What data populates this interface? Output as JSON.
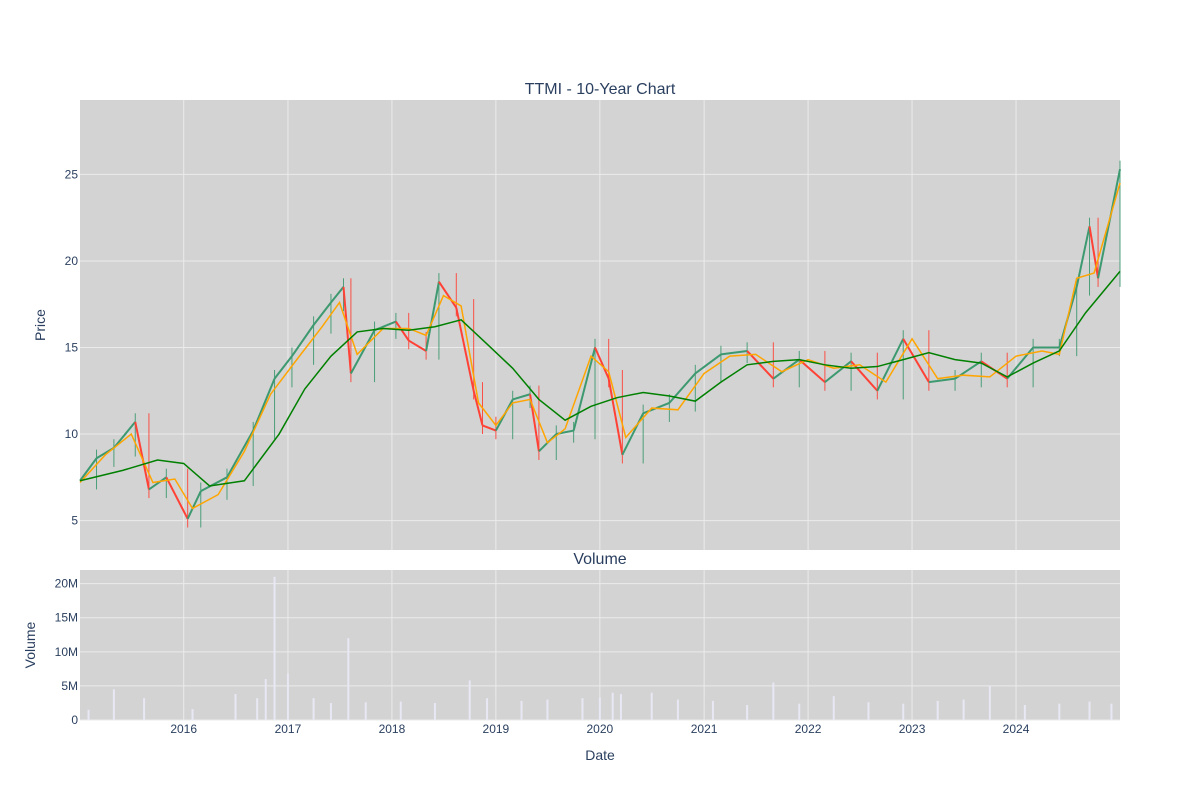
{
  "chart_data": [
    {
      "type": "line",
      "title": "TTMI - 10-Year Chart",
      "ylabel": "Price",
      "xlabel": "",
      "xlim": [
        "2015-01-02",
        "2024-12-31"
      ],
      "ylim": [
        3.3,
        29.3
      ],
      "x_tick_labels": [
        "2016",
        "2017",
        "2018",
        "2019",
        "2020",
        "2021",
        "2022",
        "2023",
        "2024"
      ],
      "x_tick_values": [
        "2016-01-01",
        "2017-01-01",
        "2018-01-01",
        "2019-01-01",
        "2020-01-01",
        "2021-01-01",
        "2022-01-01",
        "2023-01-01",
        "2024-01-01"
      ],
      "y_tick_labels": [
        "5",
        "10",
        "15",
        "20",
        "25"
      ],
      "y_tick_values": [
        5,
        10,
        15,
        20,
        25
      ],
      "grid": true,
      "legend": "none",
      "colors": {
        "background": "#d3d3d3",
        "grid": "#ebebeb",
        "increase": "#3d9970",
        "decrease": "#ff4136",
        "ma_short": "#ffa500",
        "ma_long": "#008000",
        "text": "#2a3f5f"
      },
      "series": [
        {
          "type": "candlestick-close",
          "x": [
            "2015-01-02",
            "2015-03-01",
            "2015-05-01",
            "2015-07-15",
            "2015-09-01",
            "2015-11-01",
            "2016-01-15",
            "2016-03-01",
            "2016-06-01",
            "2016-09-01",
            "2016-11-15",
            "2017-01-15",
            "2017-04-01",
            "2017-06-01",
            "2017-07-15",
            "2017-08-10",
            "2017-11-01",
            "2018-01-15",
            "2018-03-01",
            "2018-05-01",
            "2018-06-15",
            "2018-08-15",
            "2018-10-15",
            "2018-11-15",
            "2019-01-01",
            "2019-03-01",
            "2019-05-01",
            "2019-06-01",
            "2019-08-01",
            "2019-10-01",
            "2019-12-15",
            "2020-02-01",
            "2020-03-20",
            "2020-06-01",
            "2020-09-01",
            "2020-12-01",
            "2021-03-01",
            "2021-06-01",
            "2021-09-01",
            "2021-12-01",
            "2022-03-01",
            "2022-06-01",
            "2022-09-01",
            "2022-12-01",
            "2023-03-01",
            "2023-06-01",
            "2023-09-01",
            "2023-12-01",
            "2024-03-01",
            "2024-06-01",
            "2024-08-01",
            "2024-09-15",
            "2024-10-15",
            "2024-12-31"
          ],
          "values": [
            7.3,
            8.6,
            9.2,
            10.7,
            6.8,
            7.5,
            5.1,
            6.7,
            7.5,
            10.2,
            13.2,
            14.5,
            16.3,
            17.6,
            18.5,
            13.5,
            16.0,
            16.5,
            15.4,
            14.8,
            18.8,
            17.3,
            12.5,
            10.5,
            10.2,
            12.0,
            12.3,
            9.0,
            10.0,
            10.2,
            15.0,
            13.2,
            8.8,
            11.2,
            11.8,
            13.5,
            14.6,
            14.8,
            13.2,
            14.3,
            13.0,
            14.2,
            12.5,
            15.5,
            13.0,
            13.2,
            14.2,
            13.2,
            15.0,
            15.0,
            18.5,
            22.0,
            19.0,
            25.3
          ]
        },
        {
          "type": "line",
          "color": "#ffa500",
          "x": [
            "2015-01-02",
            "2015-04-01",
            "2015-07-01",
            "2015-09-15",
            "2015-12-01",
            "2016-02-01",
            "2016-05-01",
            "2016-08-01",
            "2016-11-01",
            "2017-02-01",
            "2017-05-01",
            "2017-07-01",
            "2017-09-01",
            "2017-12-01",
            "2018-03-01",
            "2018-05-01",
            "2018-07-01",
            "2018-09-01",
            "2018-11-01",
            "2019-01-01",
            "2019-03-01",
            "2019-05-01",
            "2019-07-01",
            "2019-09-01",
            "2019-12-01",
            "2020-02-01",
            "2020-04-01",
            "2020-07-01",
            "2020-10-01",
            "2021-01-01",
            "2021-04-01",
            "2021-07-01",
            "2021-10-01",
            "2022-01-01",
            "2022-04-01",
            "2022-07-01",
            "2022-10-01",
            "2023-01-01",
            "2023-04-01",
            "2023-07-01",
            "2023-10-01",
            "2024-01-01",
            "2024-04-01",
            "2024-06-01",
            "2024-08-01",
            "2024-10-01",
            "2024-12-31"
          ],
          "values": [
            7.2,
            8.8,
            10.0,
            7.2,
            7.4,
            5.7,
            6.5,
            9.0,
            12.3,
            14.3,
            16.2,
            17.6,
            14.6,
            16.1,
            16.1,
            15.7,
            18.0,
            17.4,
            11.8,
            10.5,
            11.8,
            12.0,
            9.5,
            10.3,
            14.5,
            13.6,
            9.8,
            11.5,
            11.4,
            13.5,
            14.5,
            14.6,
            13.6,
            14.3,
            13.8,
            14.0,
            13.0,
            15.5,
            13.2,
            13.4,
            13.3,
            14.5,
            14.8,
            14.6,
            19.0,
            19.3,
            24.5
          ]
        },
        {
          "type": "line",
          "color": "#008000",
          "x": [
            "2015-01-02",
            "2015-06-01",
            "2015-10-01",
            "2016-01-01",
            "2016-04-01",
            "2016-08-01",
            "2016-12-01",
            "2017-03-01",
            "2017-06-01",
            "2017-09-01",
            "2017-12-01",
            "2018-03-01",
            "2018-06-01",
            "2018-09-01",
            "2018-12-01",
            "2019-03-01",
            "2019-06-01",
            "2019-09-01",
            "2019-12-01",
            "2020-03-01",
            "2020-06-01",
            "2020-09-01",
            "2020-12-01",
            "2021-03-01",
            "2021-06-01",
            "2021-09-01",
            "2021-12-01",
            "2022-03-01",
            "2022-06-01",
            "2022-09-01",
            "2022-12-01",
            "2023-03-01",
            "2023-06-01",
            "2023-09-01",
            "2023-12-01",
            "2024-03-01",
            "2024-06-01",
            "2024-09-01",
            "2024-12-31"
          ],
          "values": [
            7.3,
            7.9,
            8.5,
            8.3,
            7.0,
            7.3,
            10.0,
            12.6,
            14.5,
            15.9,
            16.1,
            16.0,
            16.2,
            16.6,
            15.2,
            13.8,
            12.0,
            10.8,
            11.6,
            12.1,
            12.4,
            12.2,
            11.9,
            13.0,
            14.0,
            14.2,
            14.3,
            14.0,
            13.8,
            13.9,
            14.3,
            14.7,
            14.3,
            14.1,
            13.3,
            14.1,
            14.8,
            17.0,
            19.4
          ]
        }
      ]
    },
    {
      "type": "bar",
      "title": "Volume",
      "ylabel": "Volume",
      "xlabel": "Date",
      "xlim": [
        "2015-01-02",
        "2024-12-31"
      ],
      "ylim": [
        0,
        22000000
      ],
      "x_tick_labels": [
        "2016",
        "2017",
        "2018",
        "2019",
        "2020",
        "2021",
        "2022",
        "2023",
        "2024"
      ],
      "x_tick_values": [
        "2016-01-01",
        "2017-01-01",
        "2018-01-01",
        "2019-01-01",
        "2020-01-01",
        "2021-01-01",
        "2022-01-01",
        "2023-01-01",
        "2024-01-01"
      ],
      "y_tick_labels": [
        "0",
        "5M",
        "10M",
        "15M",
        "20M"
      ],
      "y_tick_values": [
        0,
        5000000,
        10000000,
        15000000,
        20000000
      ],
      "grid": true,
      "legend": "none",
      "colors": {
        "background": "#d3d3d3",
        "grid": "#ebebeb",
        "bar": "#e8e8f5",
        "text": "#2a3f5f"
      },
      "series": [
        {
          "type": "bar",
          "x": [
            "2015-02-01",
            "2015-05-01",
            "2015-08-15",
            "2016-02-01",
            "2016-07-01",
            "2016-09-15",
            "2016-10-15",
            "2016-11-15",
            "2017-01-01",
            "2017-04-01",
            "2017-06-01",
            "2017-08-01",
            "2017-10-01",
            "2018-02-01",
            "2018-06-01",
            "2018-10-01",
            "2018-12-01",
            "2019-04-01",
            "2019-07-01",
            "2019-11-01",
            "2020-01-01",
            "2020-02-15",
            "2020-03-15",
            "2020-07-01",
            "2020-10-01",
            "2021-02-01",
            "2021-06-01",
            "2021-09-01",
            "2021-12-01",
            "2022-04-01",
            "2022-08-01",
            "2022-12-01",
            "2023-04-01",
            "2023-07-01",
            "2023-10-01",
            "2024-02-01",
            "2024-06-01",
            "2024-09-15",
            "2024-12-01"
          ],
          "values": [
            1500000,
            4500000,
            3200000,
            1600000,
            3800000,
            3200000,
            6000000,
            21000000,
            6800000,
            3200000,
            2500000,
            12000000,
            2600000,
            2700000,
            2500000,
            5800000,
            3200000,
            2800000,
            3000000,
            3200000,
            3300000,
            4000000,
            3800000,
            4000000,
            3000000,
            2800000,
            2200000,
            5500000,
            2400000,
            3500000,
            2600000,
            2400000,
            2800000,
            3000000,
            5000000,
            2200000,
            2400000,
            2700000,
            2400000
          ]
        }
      ]
    }
  ]
}
